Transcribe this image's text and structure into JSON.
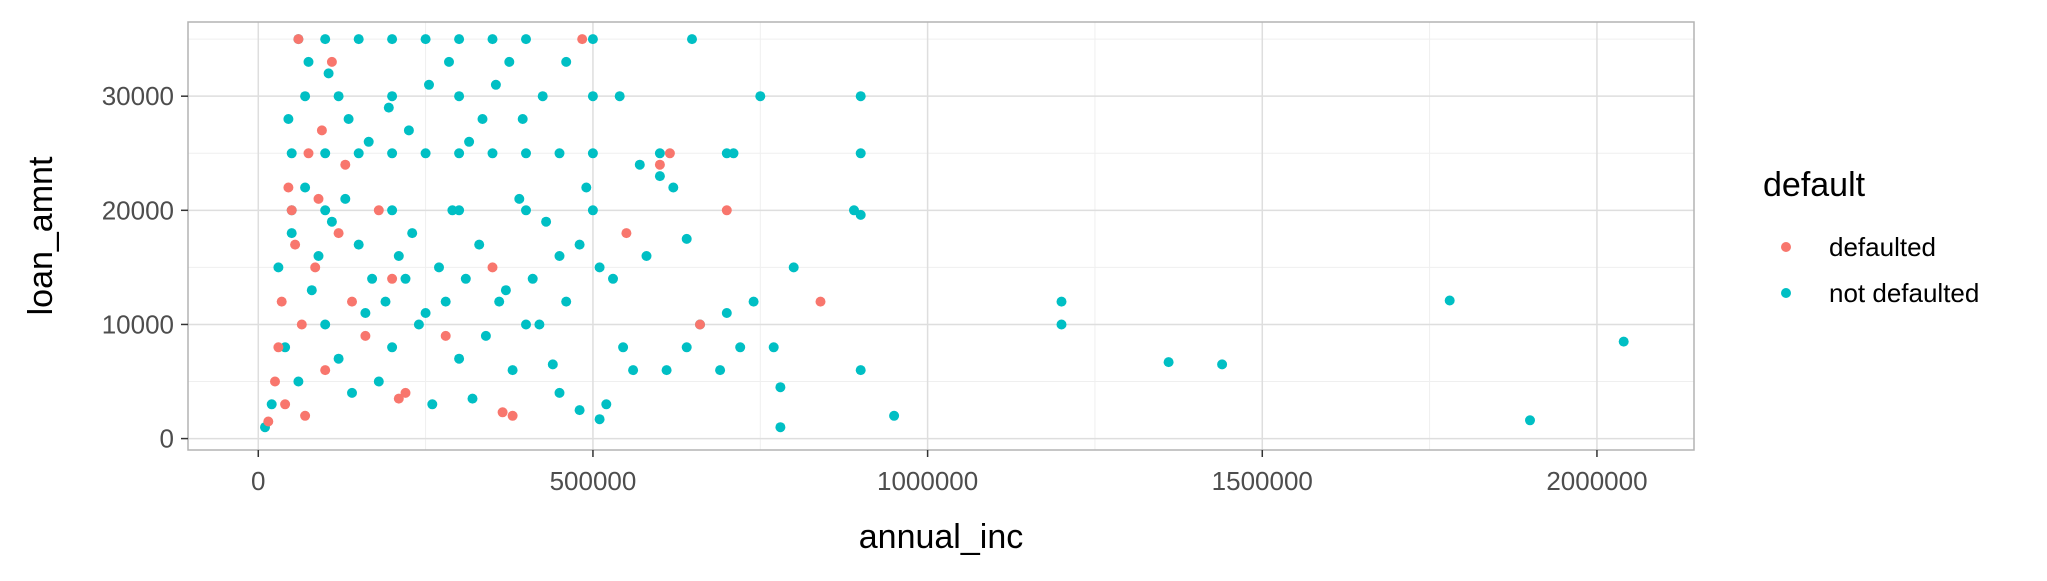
{
  "chart_data": {
    "type": "scatter",
    "xlabel": "annual_inc",
    "ylabel": "loan_amnt",
    "xlim": [
      -105000,
      2145000
    ],
    "ylim": [
      -1000,
      36500
    ],
    "x_ticks": [
      0,
      500000,
      1000000,
      1500000,
      2000000
    ],
    "x_tick_labels": [
      "0",
      "500000",
      "1000000",
      "1500000",
      "2000000"
    ],
    "y_ticks": [
      0,
      10000,
      20000,
      30000
    ],
    "y_tick_labels": [
      "0",
      "10000",
      "20000",
      "30000"
    ],
    "x_minor_ticks": [
      250000,
      750000,
      1250000,
      1750000
    ],
    "y_minor_ticks": [
      5000,
      15000,
      25000,
      35000
    ],
    "grid": true,
    "legend": {
      "title": "default",
      "position": "right",
      "entries": [
        "defaulted",
        "not defaulted"
      ]
    },
    "colors": {
      "defaulted": "#F8766D",
      "not defaulted": "#00BFC4",
      "panel_border": "#b3b3b3",
      "grid_major": "#dedede",
      "grid_minor": "#efefef"
    },
    "series": [
      {
        "name": "defaulted",
        "points": [
          [
            484000,
            35000
          ],
          [
            600000,
            24000
          ],
          [
            615000,
            25000
          ],
          [
            700000,
            20000
          ],
          [
            550000,
            18000
          ],
          [
            660000,
            10000
          ],
          [
            840000,
            12000
          ],
          [
            380000,
            2000
          ],
          [
            365000,
            2300
          ],
          [
            350000,
            15000
          ],
          [
            280000,
            9000
          ],
          [
            220000,
            4000
          ],
          [
            210000,
            3500
          ],
          [
            110000,
            33000
          ],
          [
            60000,
            35000
          ],
          [
            95000,
            27000
          ],
          [
            75000,
            25000
          ],
          [
            50000,
            20000
          ],
          [
            35000,
            12000
          ],
          [
            30000,
            8000
          ],
          [
            45000,
            22000
          ],
          [
            120000,
            18000
          ],
          [
            85000,
            15000
          ],
          [
            140000,
            12000
          ],
          [
            65000,
            10000
          ],
          [
            25000,
            5000
          ],
          [
            40000,
            3000
          ],
          [
            160000,
            9000
          ],
          [
            100000,
            6000
          ],
          [
            70000,
            2000
          ],
          [
            15000,
            1500
          ],
          [
            55000,
            17000
          ],
          [
            180000,
            20000
          ],
          [
            200000,
            14000
          ],
          [
            130000,
            24000
          ],
          [
            90000,
            21000
          ]
        ]
      },
      {
        "name": "not defaulted",
        "points": [
          [
            648000,
            35000
          ],
          [
            500000,
            35000
          ],
          [
            400000,
            35000
          ],
          [
            350000,
            35000
          ],
          [
            300000,
            35000
          ],
          [
            250000,
            35000
          ],
          [
            200000,
            35000
          ],
          [
            150000,
            35000
          ],
          [
            100000,
            35000
          ],
          [
            60000,
            35000
          ],
          [
            750000,
            30000
          ],
          [
            900000,
            30000
          ],
          [
            500000,
            30000
          ],
          [
            300000,
            30000
          ],
          [
            200000,
            30000
          ],
          [
            120000,
            30000
          ],
          [
            70000,
            30000
          ],
          [
            700000,
            25000
          ],
          [
            710000,
            25000
          ],
          [
            600000,
            25000
          ],
          [
            900000,
            25000
          ],
          [
            500000,
            25000
          ],
          [
            450000,
            25000
          ],
          [
            400000,
            25000
          ],
          [
            350000,
            25000
          ],
          [
            300000,
            25000
          ],
          [
            250000,
            25000
          ],
          [
            200000,
            25000
          ],
          [
            150000,
            25000
          ],
          [
            100000,
            25000
          ],
          [
            50000,
            25000
          ],
          [
            890000,
            20000
          ],
          [
            900000,
            19600
          ],
          [
            500000,
            20000
          ],
          [
            400000,
            20000
          ],
          [
            300000,
            20000
          ],
          [
            200000,
            20000
          ],
          [
            100000,
            20000
          ],
          [
            50000,
            20000
          ],
          [
            640000,
            17500
          ],
          [
            580000,
            16000
          ],
          [
            510000,
            15000
          ],
          [
            480000,
            17000
          ],
          [
            450000,
            16000
          ],
          [
            800000,
            15000
          ],
          [
            740000,
            12000
          ],
          [
            700000,
            11000
          ],
          [
            1200000,
            12000
          ],
          [
            1200000,
            10000
          ],
          [
            1780000,
            12100
          ],
          [
            2040000,
            8500
          ],
          [
            1360000,
            6700
          ],
          [
            1440000,
            6500
          ],
          [
            1900000,
            1600
          ],
          [
            950000,
            2000
          ],
          [
            900000,
            6000
          ],
          [
            780000,
            4500
          ],
          [
            780000,
            1000
          ],
          [
            720000,
            8000
          ],
          [
            770000,
            8000
          ],
          [
            690000,
            6000
          ],
          [
            660000,
            10000
          ],
          [
            640000,
            8000
          ],
          [
            610000,
            6000
          ],
          [
            560000,
            6000
          ],
          [
            545000,
            8000
          ],
          [
            520000,
            3000
          ],
          [
            510000,
            1700
          ],
          [
            480000,
            2500
          ],
          [
            450000,
            4000
          ],
          [
            440000,
            6500
          ],
          [
            420000,
            10000
          ],
          [
            400000,
            10000
          ],
          [
            380000,
            6000
          ],
          [
            360000,
            12000
          ],
          [
            340000,
            9000
          ],
          [
            320000,
            3500
          ],
          [
            300000,
            7000
          ],
          [
            280000,
            12000
          ],
          [
            260000,
            3000
          ],
          [
            240000,
            10000
          ],
          [
            220000,
            14000
          ],
          [
            200000,
            8000
          ],
          [
            180000,
            5000
          ],
          [
            160000,
            11000
          ],
          [
            140000,
            4000
          ],
          [
            120000,
            7000
          ],
          [
            100000,
            10000
          ],
          [
            80000,
            13000
          ],
          [
            60000,
            5000
          ],
          [
            40000,
            8000
          ],
          [
            20000,
            3000
          ],
          [
            10000,
            1000
          ],
          [
            30000,
            15000
          ],
          [
            50000,
            18000
          ],
          [
            70000,
            22000
          ],
          [
            90000,
            16000
          ],
          [
            110000,
            19000
          ],
          [
            130000,
            21000
          ],
          [
            150000,
            17000
          ],
          [
            170000,
            14000
          ],
          [
            190000,
            12000
          ],
          [
            210000,
            16000
          ],
          [
            230000,
            18000
          ],
          [
            250000,
            11000
          ],
          [
            270000,
            15000
          ],
          [
            290000,
            20000
          ],
          [
            310000,
            14000
          ],
          [
            330000,
            17000
          ],
          [
            370000,
            13000
          ],
          [
            390000,
            21000
          ],
          [
            410000,
            14000
          ],
          [
            430000,
            19000
          ],
          [
            460000,
            12000
          ],
          [
            490000,
            22000
          ],
          [
            530000,
            14000
          ],
          [
            600000,
            23000
          ],
          [
            620000,
            22000
          ],
          [
            45000,
            28000
          ],
          [
            75000,
            33000
          ],
          [
            105000,
            32000
          ],
          [
            135000,
            28000
          ],
          [
            165000,
            26000
          ],
          [
            195000,
            29000
          ],
          [
            225000,
            27000
          ],
          [
            255000,
            31000
          ],
          [
            285000,
            33000
          ],
          [
            315000,
            26000
          ],
          [
            335000,
            28000
          ],
          [
            355000,
            31000
          ],
          [
            375000,
            33000
          ],
          [
            395000,
            28000
          ],
          [
            425000,
            30000
          ],
          [
            460000,
            33000
          ],
          [
            540000,
            30000
          ],
          [
            570000,
            24000
          ]
        ]
      }
    ]
  }
}
